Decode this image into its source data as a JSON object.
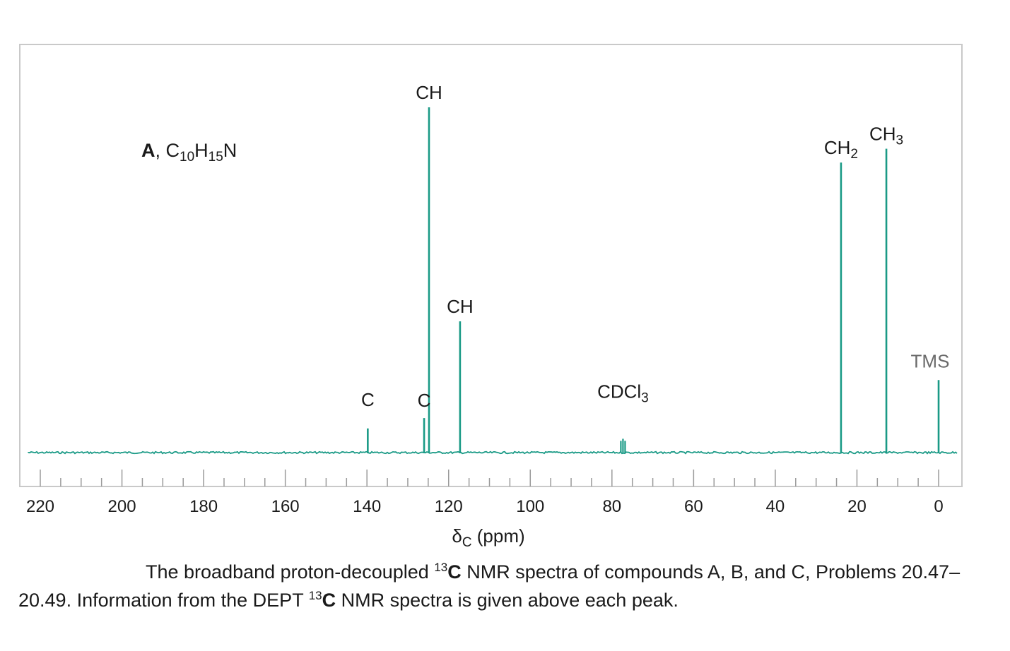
{
  "chart_data": {
    "type": "line",
    "title": "A, C10H15N",
    "title_parts": {
      "letter": "A",
      "sep": ", ",
      "formula": [
        [
          "C",
          ""
        ],
        [
          "10",
          "sub"
        ],
        [
          "H",
          ""
        ],
        [
          "15",
          "sub"
        ],
        [
          "N",
          ""
        ]
      ]
    },
    "xlabel": {
      "symbol": "δ",
      "subscript": "C",
      "unit": " (ppm)"
    },
    "xlim": [
      220,
      0
    ],
    "x_direction": "reversed",
    "x_ticks_major": [
      220,
      200,
      180,
      160,
      140,
      120,
      100,
      80,
      60,
      40,
      20,
      0
    ],
    "x_ticks_minor_step": 5,
    "grid": false,
    "line_color": "#1a9a86",
    "peaks": [
      {
        "ppm": 139.8,
        "height": 0.07,
        "label": [
          [
            "C",
            ""
          ]
        ]
      },
      {
        "ppm": 126.0,
        "height": 0.1,
        "label": [
          [
            "C",
            ""
          ]
        ]
      },
      {
        "ppm": 124.8,
        "height": 1.0,
        "label": [
          [
            "CH",
            ""
          ]
        ]
      },
      {
        "ppm": 117.2,
        "height": 0.38,
        "label": [
          [
            "CH",
            ""
          ]
        ]
      },
      {
        "ppm": 77.3,
        "height": 0.04,
        "label": [
          [
            "CDCl",
            ""
          ],
          [
            "3",
            "sub"
          ]
        ],
        "triplet": true
      },
      {
        "ppm": 23.9,
        "height": 0.84,
        "label": [
          [
            "CH",
            ""
          ],
          [
            "2",
            "sub"
          ]
        ]
      },
      {
        "ppm": 12.8,
        "height": 0.88,
        "label": [
          [
            "CH",
            ""
          ],
          [
            "3",
            "sub"
          ]
        ]
      },
      {
        "ppm": 0.0,
        "height": 0.21,
        "label": [
          [
            "TMS",
            ""
          ]
        ],
        "label_style": "grey"
      }
    ]
  },
  "caption": {
    "part1": "The broadband proton-decoupled ",
    "sup1": "13",
    "bold1": "C",
    "part2": " NMR spectra of compounds A, B, and C, Problems 20.47–20.49. Information from the DEPT ",
    "sup2": "13",
    "bold2": "C",
    "part3": " NMR spectra is given above each peak."
  }
}
